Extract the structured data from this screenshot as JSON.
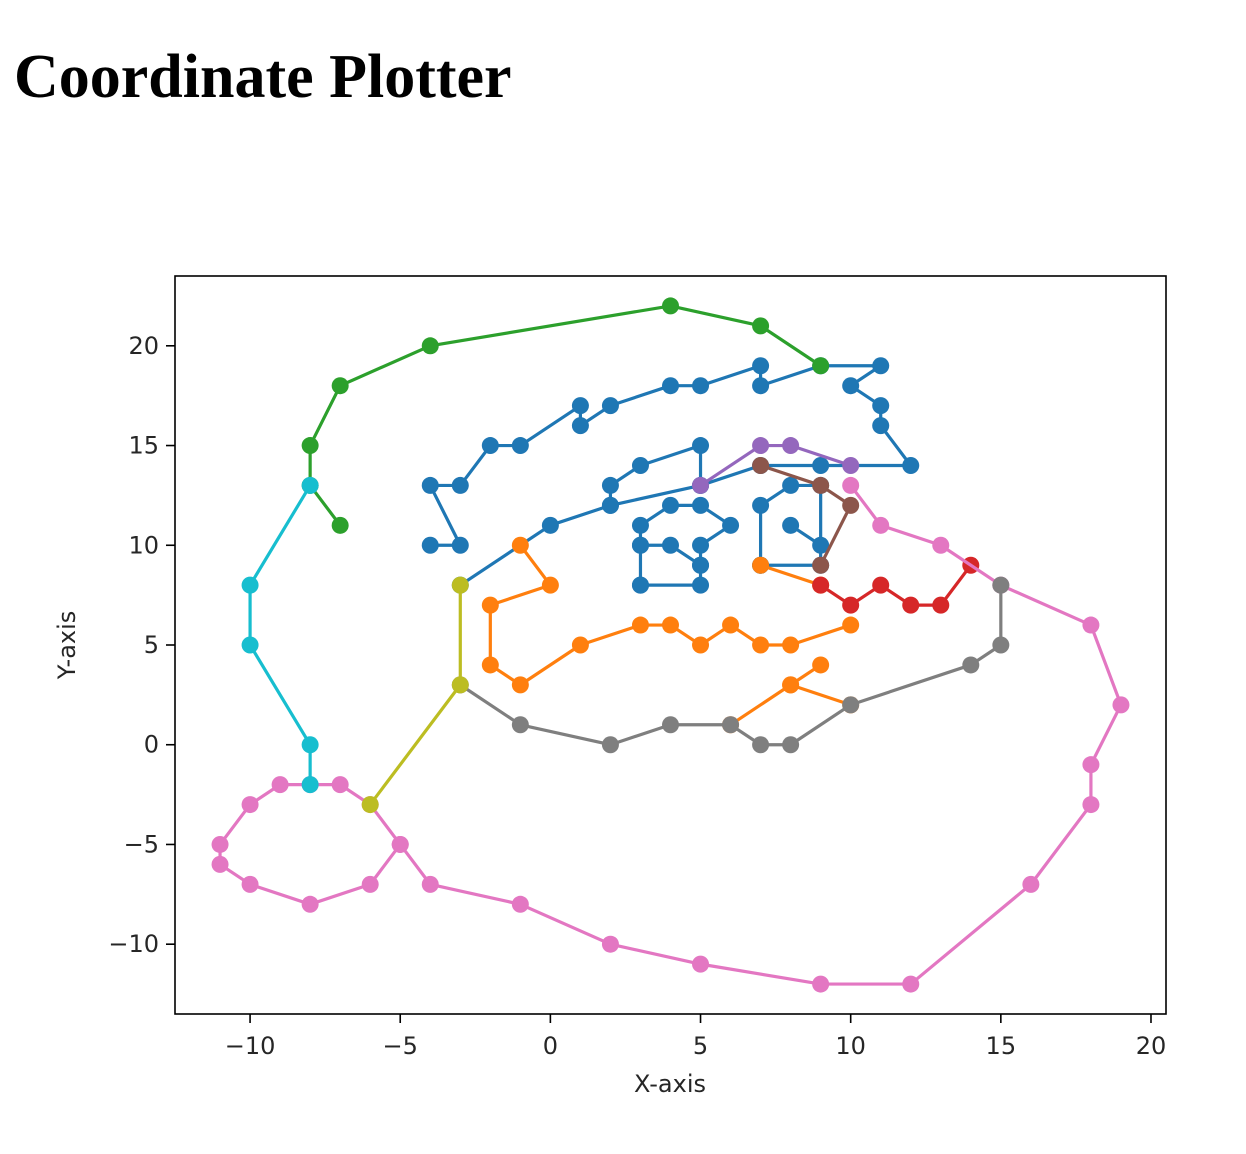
{
  "page": {
    "heading": "Coordinate Plotter"
  },
  "chart_data": {
    "type": "line",
    "title": "",
    "xlabel": "X-axis",
    "ylabel": "Y-axis",
    "xlim": [
      -12.5,
      20.5
    ],
    "ylim": [
      -13.5,
      23.5
    ],
    "xticks": [
      -10,
      -5,
      0,
      5,
      10,
      15,
      20
    ],
    "xtick_labels": [
      "−10",
      "−5",
      "0",
      "5",
      "10",
      "15",
      "20"
    ],
    "yticks": [
      -10,
      -5,
      0,
      5,
      10,
      15,
      20
    ],
    "ytick_labels": [
      "−10",
      "−5",
      "0",
      "5",
      "10",
      "15",
      "20"
    ],
    "grid": false,
    "markers": true,
    "series": [
      {
        "color": "#1f77b4",
        "points": [
          [
            -3,
            8
          ],
          [
            0,
            11
          ],
          [
            2,
            12
          ],
          [
            5,
            13
          ],
          [
            7,
            14
          ],
          [
            9,
            14
          ],
          [
            12,
            14
          ],
          [
            11,
            16
          ],
          [
            11,
            17
          ],
          [
            10,
            18
          ],
          [
            11,
            19
          ],
          [
            9,
            19
          ],
          [
            7,
            18
          ],
          [
            7,
            19
          ],
          [
            5,
            18
          ],
          [
            4,
            18
          ],
          [
            2,
            17
          ],
          [
            1,
            16
          ],
          [
            1,
            17
          ],
          [
            -1,
            15
          ],
          [
            -2,
            15
          ],
          [
            -3,
            13
          ],
          [
            -4,
            13
          ],
          [
            -3,
            10
          ],
          [
            -4,
            10
          ]
        ]
      },
      {
        "color": "#1f77b4",
        "points": [
          [
            2,
            12
          ],
          [
            2,
            13
          ],
          [
            3,
            14
          ],
          [
            5,
            15
          ],
          [
            5,
            13
          ]
        ]
      },
      {
        "color": "#1f77b4",
        "points": [
          [
            3,
            8
          ],
          [
            3,
            10
          ],
          [
            3,
            11
          ],
          [
            4,
            12
          ],
          [
            5,
            12
          ],
          [
            6,
            11
          ],
          [
            5,
            10
          ],
          [
            5,
            9
          ],
          [
            5,
            8
          ],
          [
            3,
            8
          ]
        ]
      },
      {
        "color": "#1f77b4",
        "points": [
          [
            3,
            10
          ],
          [
            4,
            10
          ],
          [
            5,
            9
          ]
        ]
      },
      {
        "color": "#1f77b4",
        "points": [
          [
            7,
            9
          ],
          [
            7,
            12
          ],
          [
            8,
            13
          ],
          [
            9,
            13
          ],
          [
            9,
            9
          ],
          [
            7,
            9
          ]
        ]
      },
      {
        "color": "#1f77b4",
        "points": [
          [
            8,
            11
          ],
          [
            9,
            10
          ]
        ]
      },
      {
        "color": "#ff7f0e",
        "points": [
          [
            -1,
            10
          ],
          [
            0,
            8
          ],
          [
            -2,
            7
          ],
          [
            -2,
            4
          ],
          [
            -1,
            3
          ],
          [
            1,
            5
          ],
          [
            3,
            6
          ],
          [
            4,
            6
          ],
          [
            5,
            5
          ],
          [
            6,
            6
          ],
          [
            7,
            5
          ],
          [
            8,
            5
          ],
          [
            10,
            6
          ]
        ]
      },
      {
        "color": "#ff7f0e",
        "points": [
          [
            7,
            9
          ],
          [
            9,
            8
          ]
        ]
      },
      {
        "color": "#ff7f0e",
        "points": [
          [
            6,
            1
          ],
          [
            8,
            3
          ],
          [
            9,
            4
          ]
        ]
      },
      {
        "color": "#ff7f0e",
        "points": [
          [
            8,
            3
          ],
          [
            10,
            2
          ]
        ]
      },
      {
        "color": "#2ca02c",
        "points": [
          [
            -7,
            11
          ],
          [
            -8,
            13
          ],
          [
            -8,
            15
          ],
          [
            -7,
            18
          ],
          [
            -4,
            20
          ],
          [
            4,
            22
          ],
          [
            7,
            21
          ],
          [
            9,
            19
          ]
        ]
      },
      {
        "color": "#d62728",
        "points": [
          [
            9,
            8
          ],
          [
            10,
            7
          ],
          [
            11,
            8
          ],
          [
            12,
            7
          ],
          [
            13,
            7
          ],
          [
            14,
            9
          ]
        ]
      },
      {
        "color": "#9467bd",
        "points": [
          [
            5,
            13
          ],
          [
            7,
            15
          ],
          [
            8,
            15
          ],
          [
            10,
            14
          ]
        ]
      },
      {
        "color": "#8c564b",
        "points": [
          [
            7,
            14
          ],
          [
            9,
            13
          ],
          [
            10,
            12
          ],
          [
            9,
            9
          ]
        ]
      },
      {
        "color": "#e377c2",
        "points": [
          [
            10,
            13
          ],
          [
            11,
            11
          ],
          [
            13,
            10
          ],
          [
            15,
            8
          ],
          [
            18,
            6
          ],
          [
            19,
            2
          ],
          [
            18,
            -1
          ],
          [
            18,
            -3
          ],
          [
            16,
            -7
          ],
          [
            12,
            -12
          ],
          [
            9,
            -12
          ],
          [
            5,
            -11
          ],
          [
            2,
            -10
          ],
          [
            -1,
            -8
          ],
          [
            -4,
            -7
          ],
          [
            -5,
            -5
          ],
          [
            -6,
            -3
          ],
          [
            -7,
            -2
          ],
          [
            -8,
            -2
          ],
          [
            -9,
            -2
          ],
          [
            -10,
            -3
          ],
          [
            -11,
            -5
          ],
          [
            -11,
            -6
          ],
          [
            -10,
            -7
          ],
          [
            -8,
            -8
          ],
          [
            -6,
            -7
          ],
          [
            -5,
            -5
          ]
        ]
      },
      {
        "color": "#7f7f7f",
        "points": [
          [
            -3,
            3
          ],
          [
            -1,
            1
          ],
          [
            2,
            0
          ],
          [
            4,
            1
          ],
          [
            6,
            1
          ],
          [
            7,
            0
          ],
          [
            8,
            0
          ],
          [
            10,
            2
          ],
          [
            14,
            4
          ],
          [
            15,
            5
          ],
          [
            15,
            8
          ]
        ]
      },
      {
        "color": "#bcbd22",
        "points": [
          [
            -3,
            8
          ],
          [
            -3,
            3
          ],
          [
            -6,
            -3
          ]
        ]
      },
      {
        "color": "#17becf",
        "points": [
          [
            -8,
            -2
          ],
          [
            -8,
            0
          ],
          [
            -10,
            5
          ],
          [
            -10,
            8
          ],
          [
            -8,
            13
          ]
        ]
      }
    ]
  }
}
